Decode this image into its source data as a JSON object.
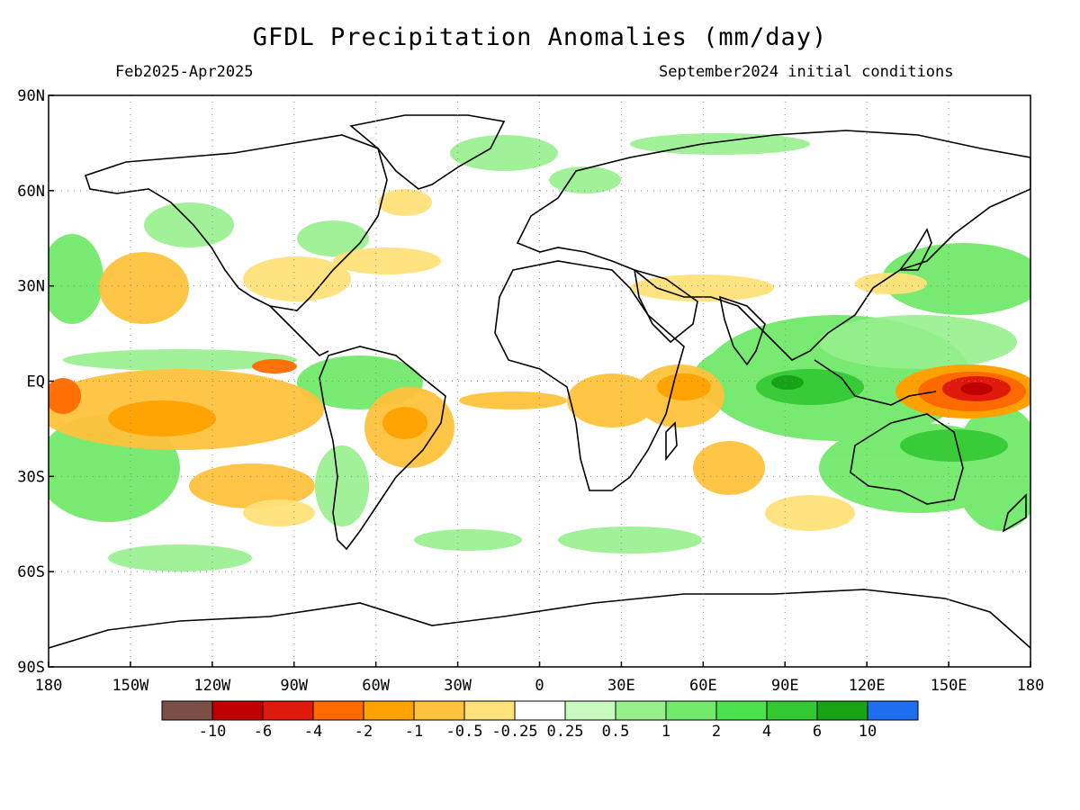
{
  "title": "GFDL Precipitation Anomalies (mm/day)",
  "period": "Feb2025-Apr2025",
  "init": "September2024 initial conditions",
  "colors": {
    "land_outline": "#000000",
    "grid": "#888888"
  },
  "lat_ticks": [
    "90N",
    "60N",
    "30N",
    "EQ",
    "30S",
    "60S",
    "90S"
  ],
  "lon_ticks": [
    "180",
    "150W",
    "120W",
    "90W",
    "60W",
    "30W",
    "0",
    "30E",
    "60E",
    "90E",
    "120E",
    "150E",
    "180"
  ],
  "colorbar": {
    "colors": [
      "#7b4f46",
      "#c00000",
      "#e01a0a",
      "#ff6a00",
      "#ffa200",
      "#ffc23c",
      "#ffe27a",
      "#ffffff",
      "#c8fac0",
      "#96f08c",
      "#72e96a",
      "#4be24b",
      "#32c832",
      "#16a316",
      "#1e6ff0"
    ],
    "labels": [
      "-10",
      "-6",
      "-4",
      "-2",
      "-1",
      "-0.5",
      "-0.25",
      "0.25",
      "0.5",
      "1",
      "2",
      "4",
      "6",
      "10"
    ]
  },
  "chart_data": {
    "type": "heatmap",
    "title": "GFDL Precipitation Anomalies (mm/day)",
    "subtitle_left": "Feb2025-Apr2025",
    "subtitle_right": "September2024 initial conditions",
    "xlim": [
      -180,
      180
    ],
    "ylim": [
      -90,
      90
    ],
    "levels": [
      -10,
      -6,
      -4,
      -2,
      -1,
      -0.5,
      -0.25,
      0.25,
      0.5,
      1,
      2,
      4,
      6,
      10
    ],
    "anomaly_regions": [
      {
        "region": "Western Pacific warm pool (150E-180, 0-10S)",
        "value": -6
      },
      {
        "region": "Central Pacific ITCZ south of equator (180-120W, 0-15S)",
        "value": -2
      },
      {
        "region": "Maritime Continent / Indian Ocean (80E-130E, 10N-15S)",
        "value": 4
      },
      {
        "region": "Southwest Pacific (150E-180, 15S-40S)",
        "value": 2
      },
      {
        "region": "Western Indian Ocean / East Africa (40E-60E, 0-10S)",
        "value": -2
      },
      {
        "region": "Central Africa (10E-30E, 0-15S)",
        "value": -1
      },
      {
        "region": "Northeastern Brazil (35W-55W, 5S-20S)",
        "value": -1
      },
      {
        "region": "Amazon / Northern South America (50W-80W, 5N-5S)",
        "value": 1
      },
      {
        "region": "Southeastern USA / Gulf (80W-100W, 25N-35N)",
        "value": -0.5
      },
      {
        "region": "Northwest Pacific (130E-180, 20N-35N)",
        "value": 1
      },
      {
        "region": "Eastern Pacific ITCZ (90W-110W, 5N)",
        "value": -2
      },
      {
        "region": "South Pacific (100W-160W, 20S-40S)",
        "value": 0.5
      },
      {
        "region": "Arabian Peninsula / Iran (40E-70E, 25N-30N)",
        "value": -0.5
      },
      {
        "region": "Pacific Northwest / Alaska (120W-150W, 45N-60N)",
        "value": 0.5
      }
    ]
  }
}
